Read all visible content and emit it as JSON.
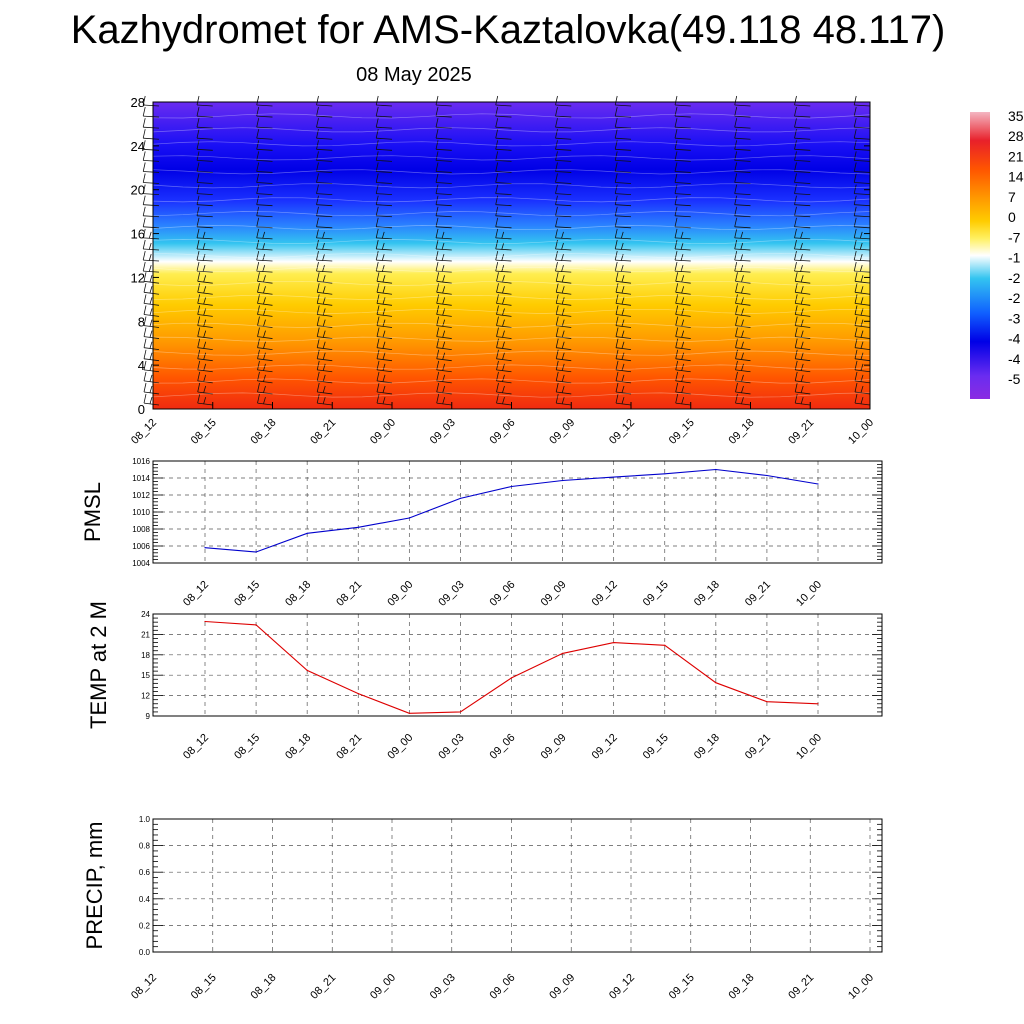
{
  "header": {
    "title": "Kazhydromet for AMS-Kaztalovka(49.118 48.117)",
    "date": "08 May 2025"
  },
  "time_labels": [
    "08_12",
    "08_15",
    "08_18",
    "08_21",
    "09_00",
    "09_03",
    "09_06",
    "09_09",
    "09_12",
    "09_15",
    "09_18",
    "09_21",
    "10_00"
  ],
  "chart_data": [
    {
      "type": "heatmap",
      "name": "cross-section",
      "x": [
        "08_12",
        "08_15",
        "08_18",
        "08_21",
        "09_00",
        "09_03",
        "09_06",
        "09_09",
        "09_12",
        "09_15",
        "09_18",
        "09_21",
        "10_00"
      ],
      "yticks": [
        0,
        4,
        8,
        12,
        16,
        20,
        24,
        28
      ],
      "ylim": [
        0,
        28
      ],
      "colorbar_labels": [
        "35",
        "28",
        "21",
        "14",
        "7",
        "0",
        "-7",
        "-1",
        "-2",
        "-2",
        "-3",
        "-4",
        "-4",
        "-5"
      ],
      "colors": [
        "#f4b6c2",
        "#e8202a",
        "#ff5500",
        "#ff9900",
        "#ffcc00",
        "#fff060",
        "#ffffff",
        "#33c4f0",
        "#1060ff",
        "#0000e6",
        "#6a2cf0",
        "#8a2be2"
      ]
    },
    {
      "type": "line",
      "name": "PMSL",
      "ylabel": "PMSL",
      "x": [
        "08_12",
        "08_15",
        "08_18",
        "08_21",
        "09_00",
        "09_03",
        "09_06",
        "09_09",
        "09_12",
        "09_15",
        "09_18",
        "09_21",
        "10_00"
      ],
      "values": [
        1005.8,
        1005.3,
        1007.5,
        1008.2,
        1009.3,
        1011.6,
        1013.0,
        1013.7,
        1014.1,
        1014.5,
        1015.0,
        1014.3,
        1013.3
      ],
      "yticks": [
        1004,
        1006,
        1008,
        1010,
        1012,
        1014,
        1016
      ],
      "ylim": [
        1004,
        1016
      ],
      "color": "#0000cc"
    },
    {
      "type": "line",
      "name": "TEMP",
      "ylabel": "TEMP at 2 M",
      "x": [
        "08_12",
        "08_15",
        "08_18",
        "08_21",
        "09_00",
        "09_03",
        "09_06",
        "09_09",
        "09_12",
        "09_15",
        "09_18",
        "09_21",
        "10_00"
      ],
      "values": [
        22.9,
        22.4,
        15.7,
        12.3,
        9.4,
        9.6,
        14.6,
        18.2,
        19.8,
        19.4,
        13.9,
        11.1,
        10.8
      ],
      "yticks": [
        9,
        12,
        15,
        18,
        21,
        24
      ],
      "ylim": [
        9,
        24
      ],
      "color": "#dd0000"
    },
    {
      "type": "line",
      "name": "PRECIP",
      "ylabel": "PRECIP, mm",
      "x": [
        "08_12",
        "08_15",
        "08_18",
        "08_21",
        "09_00",
        "09_03",
        "09_06",
        "09_09",
        "09_12",
        "09_15",
        "09_18",
        "09_21",
        "10_00"
      ],
      "values": [
        0,
        0,
        0,
        0,
        0,
        0,
        0,
        0,
        0,
        0,
        0,
        0,
        0
      ],
      "yticks": [
        "0.0",
        "0.2",
        "0.4",
        "0.6",
        "0.8",
        "1.0"
      ],
      "ylim": [
        0,
        1
      ],
      "color": "#006600"
    }
  ]
}
